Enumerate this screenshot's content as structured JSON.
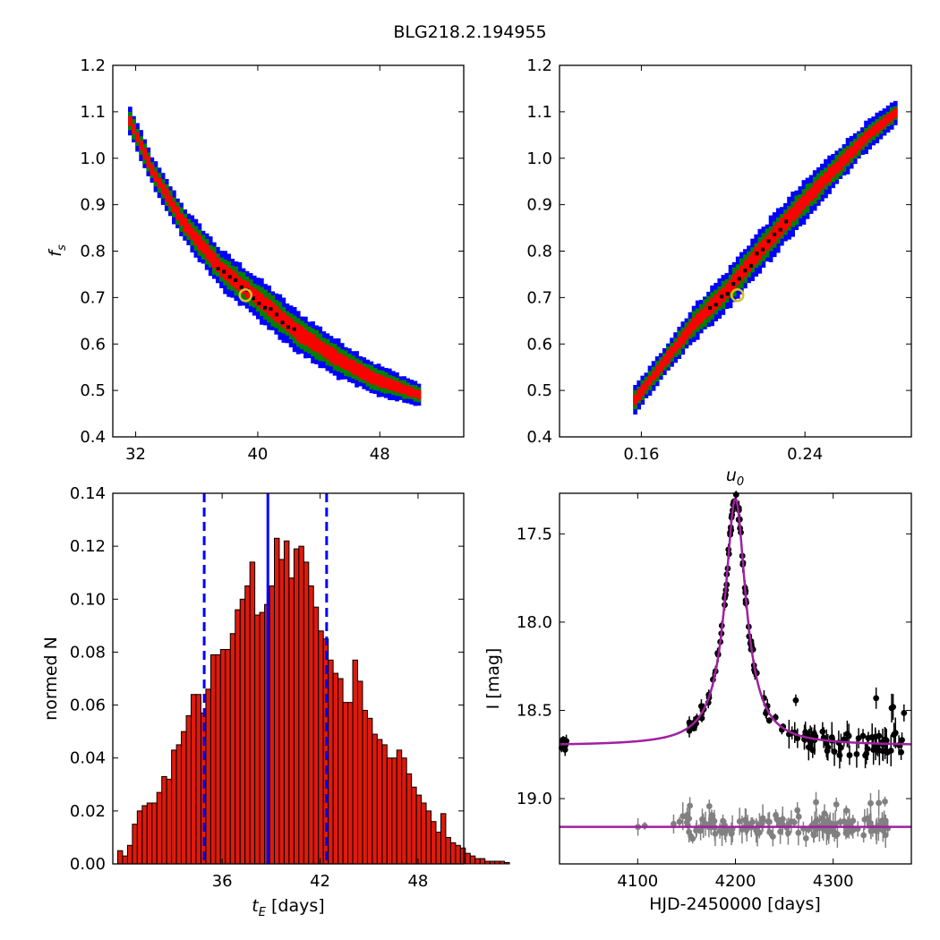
{
  "title": "BLG218.2.194955",
  "colors": {
    "sigma1": "#ff0000",
    "sigma2": "#008000",
    "sigma3": "#0000ff",
    "best": "#000000",
    "marker": "#d4c12a",
    "model": "#a020a0",
    "data1": "#000000",
    "data2": "#808080",
    "bar": "#dd1a0c",
    "interval": "#0000ff"
  },
  "chart_data": [
    {
      "type": "heatmap",
      "name": "fs_vs_tE",
      "xlabel": "",
      "ylabel": "f_s",
      "xlim": [
        30.5,
        53.5
      ],
      "ylim": [
        0.4,
        1.2
      ],
      "xticks": [
        32,
        40,
        48
      ],
      "yticks": [
        0.4,
        0.5,
        0.6,
        0.7,
        0.8,
        0.9,
        1.0,
        1.1,
        1.2
      ],
      "ridge": [
        [
          31.5,
          1.08
        ],
        [
          33.0,
          0.97
        ],
        [
          35.0,
          0.86
        ],
        [
          37.5,
          0.76
        ],
        [
          40.0,
          0.695
        ],
        [
          42.5,
          0.625
        ],
        [
          45.0,
          0.57
        ],
        [
          47.5,
          0.525
        ],
        [
          50.5,
          0.49
        ]
      ],
      "best_fit": [
        39.2,
        0.705
      ],
      "contours": [
        "1 sigma",
        "2 sigma",
        "3 sigma"
      ]
    },
    {
      "type": "heatmap",
      "name": "fs_vs_u0",
      "xlabel": "u_0",
      "ylabel": "",
      "xlim": [
        0.12,
        0.292
      ],
      "ylim": [
        0.4,
        1.2
      ],
      "xticks": [
        0.16,
        0.24
      ],
      "yticks": [
        0.4,
        0.5,
        0.6,
        0.7,
        0.8,
        0.9,
        1.0,
        1.1,
        1.2
      ],
      "ridge": [
        [
          0.156,
          0.48
        ],
        [
          0.17,
          0.56
        ],
        [
          0.185,
          0.645
        ],
        [
          0.2,
          0.71
        ],
        [
          0.215,
          0.79
        ],
        [
          0.23,
          0.865
        ],
        [
          0.25,
          0.96
        ],
        [
          0.27,
          1.05
        ],
        [
          0.284,
          1.1
        ]
      ],
      "best_fit": [
        0.207,
        0.705
      ],
      "contours": [
        "1 sigma",
        "2 sigma",
        "3 sigma"
      ]
    },
    {
      "type": "bar",
      "name": "tE_histogram",
      "xlabel": "t_E [days]",
      "ylabel": "normed N",
      "xlim": [
        29.3,
        50.8
      ],
      "ylim": [
        0,
        0.14
      ],
      "xticks": [
        36,
        42,
        48
      ],
      "yticks": [
        0.0,
        0.02,
        0.04,
        0.06,
        0.08,
        0.1,
        0.12,
        0.14
      ],
      "bin_start": 29.6,
      "bin_width": 0.3,
      "values": [
        0.005,
        0.003,
        0.007,
        0.015,
        0.02,
        0.022,
        0.023,
        0.023,
        0.027,
        0.033,
        0.032,
        0.043,
        0.045,
        0.05,
        0.056,
        0.064,
        0.064,
        0.057,
        0.066,
        0.079,
        0.079,
        0.081,
        0.081,
        0.087,
        0.096,
        0.1,
        0.105,
        0.114,
        0.094,
        0.095,
        0.098,
        0.105,
        0.123,
        0.115,
        0.122,
        0.108,
        0.119,
        0.12,
        0.114,
        0.105,
        0.097,
        0.088,
        0.085,
        0.077,
        0.072,
        0.07,
        0.061,
        0.061,
        0.077,
        0.069,
        0.058,
        0.055,
        0.049,
        0.047,
        0.045,
        0.04,
        0.04,
        0.043,
        0.04,
        0.034,
        0.029,
        0.026,
        0.023,
        0.02,
        0.016,
        0.012,
        0.019,
        0.01,
        0.008,
        0.007,
        0.006,
        0.004,
        0.003,
        0.002,
        0.002,
        0.001,
        0.001,
        0.001,
        0.001,
        0.0005
      ],
      "median": 38.8,
      "interval": [
        34.9,
        42.4
      ]
    },
    {
      "type": "scatter",
      "name": "light_curve",
      "xlabel": "HJD-2450000 [days]",
      "ylabel": "I [mag]",
      "xlim": [
        4020,
        4380
      ],
      "ylim": [
        19.37,
        17.27
      ],
      "xticks": [
        4100,
        4200,
        4300
      ],
      "yticks": [
        17.5,
        18.0,
        18.5,
        19.0
      ],
      "model": {
        "t0": 4200,
        "baseline_mag": 18.7,
        "peak_mag": 17.3,
        "width_days": 9.5,
        "second_baseline_mag": 19.16
      },
      "series": [
        {
          "name": "",
          "points": "black data points",
          "color": "#000000"
        },
        {
          "name": "",
          "points": "gray data points",
          "color": "#808080"
        }
      ]
    }
  ]
}
